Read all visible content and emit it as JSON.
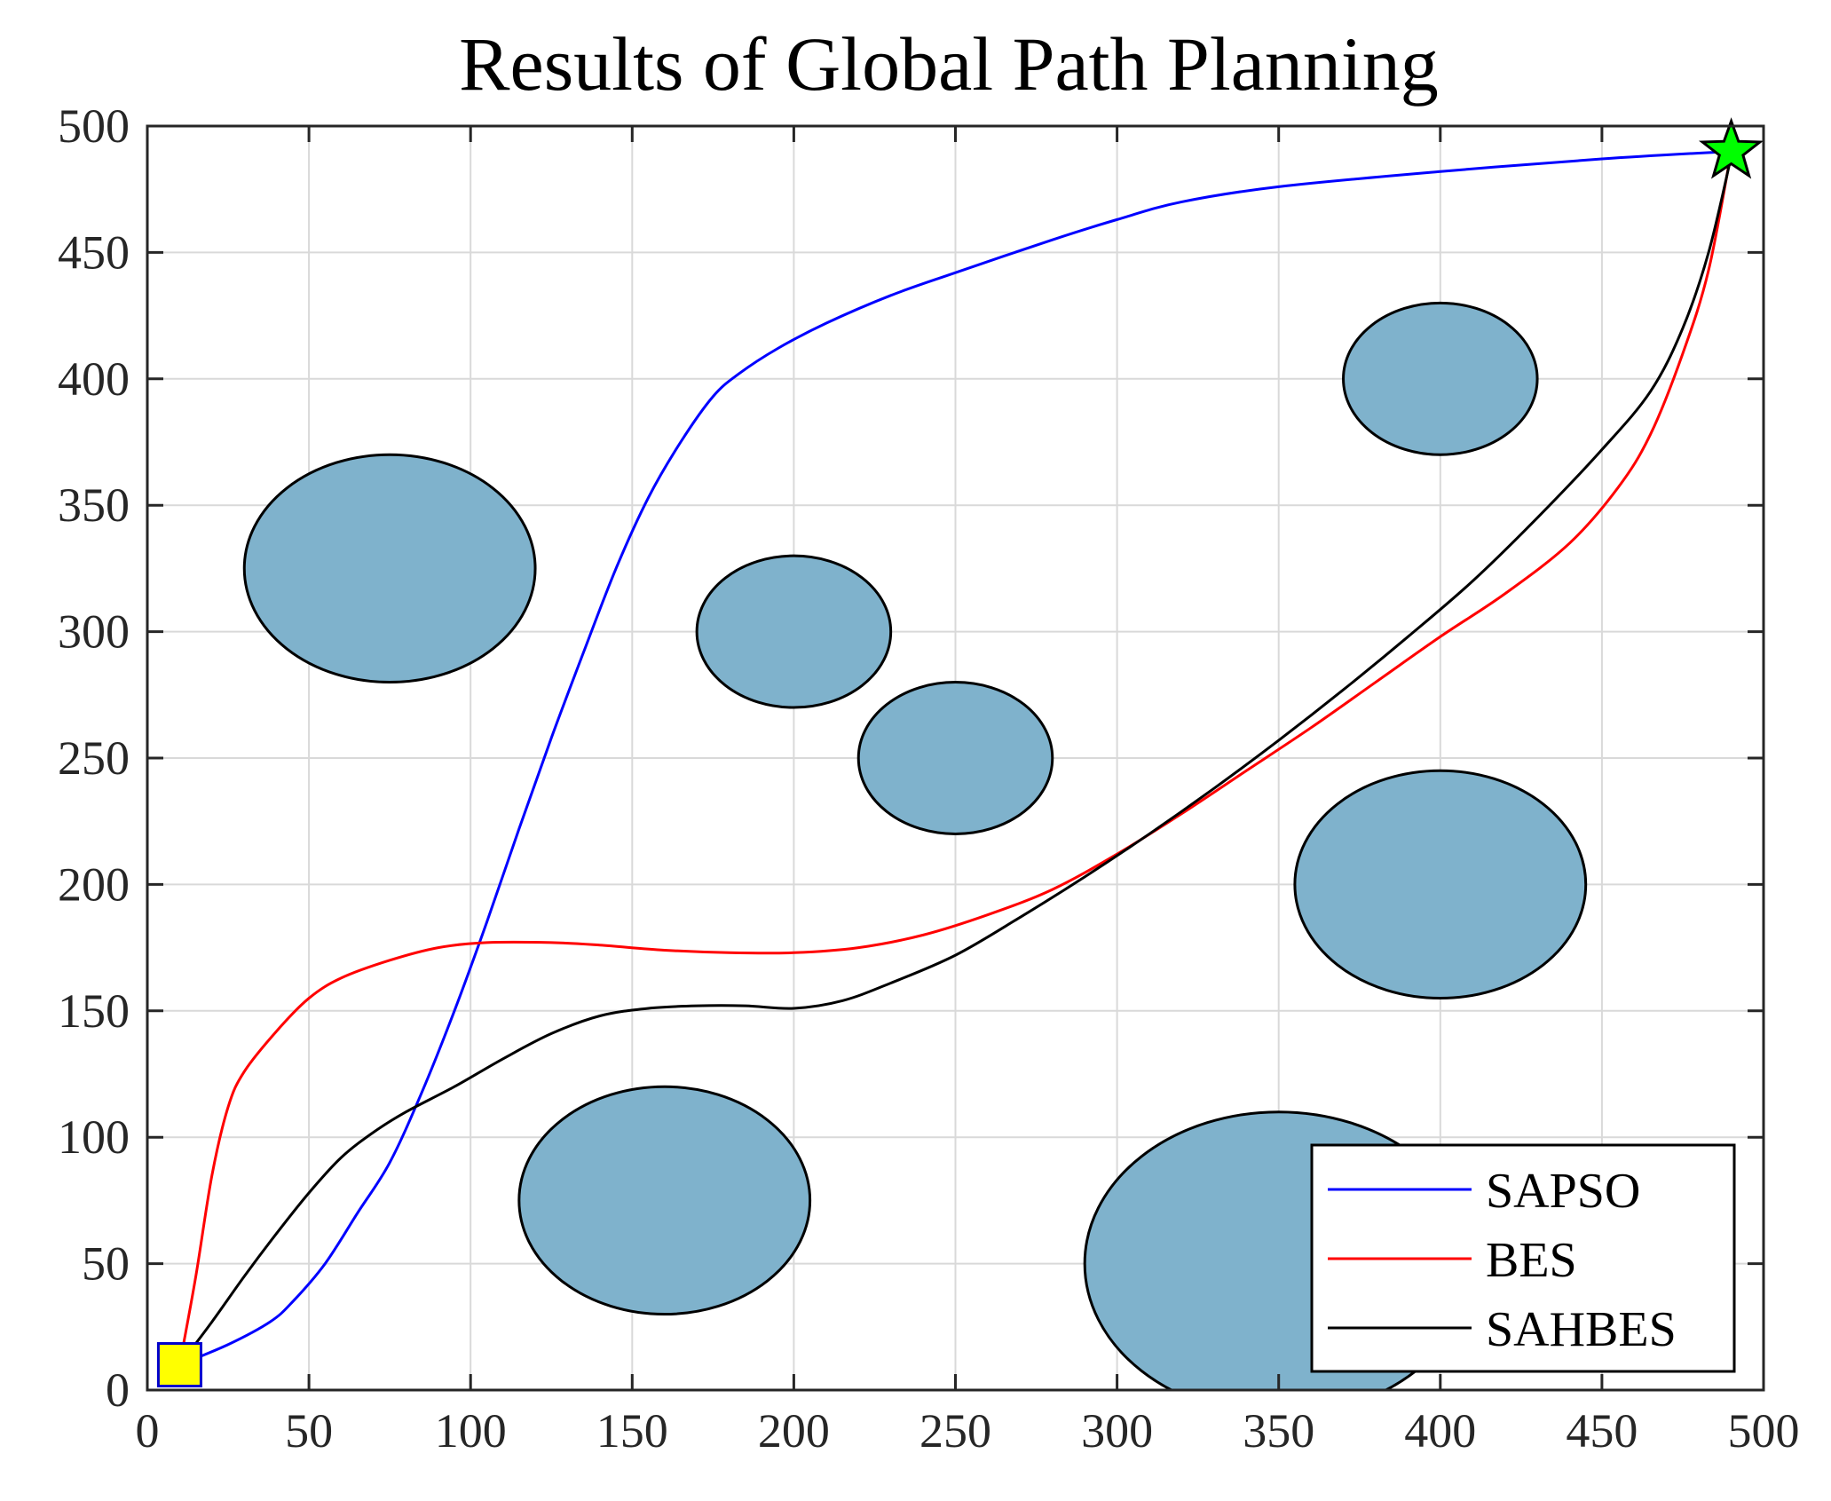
{
  "chart_data": {
    "type": "line",
    "title": "Results of Global Path Planning",
    "xlabel": "",
    "ylabel": "",
    "xlim": [
      0,
      500
    ],
    "ylim": [
      0,
      500
    ],
    "xticks": [
      0,
      50,
      100,
      150,
      200,
      250,
      300,
      350,
      400,
      450,
      500
    ],
    "yticks": [
      0,
      50,
      100,
      150,
      200,
      250,
      300,
      350,
      400,
      450,
      500
    ],
    "grid": true,
    "legend_position": "bottom-right",
    "start": {
      "x": 10,
      "y": 10,
      "marker": "square",
      "color": "#ffff00"
    },
    "goal": {
      "x": 490,
      "y": 490,
      "marker": "star",
      "color": "#00ff00"
    },
    "obstacles": [
      {
        "cx": 75,
        "cy": 325,
        "rx": 45,
        "ry": 45
      },
      {
        "cx": 200,
        "cy": 300,
        "rx": 30,
        "ry": 30
      },
      {
        "cx": 250,
        "cy": 250,
        "rx": 30,
        "ry": 30
      },
      {
        "cx": 400,
        "cy": 400,
        "rx": 30,
        "ry": 30
      },
      {
        "cx": 400,
        "cy": 200,
        "rx": 45,
        "ry": 45
      },
      {
        "cx": 160,
        "cy": 75,
        "rx": 45,
        "ry": 45
      },
      {
        "cx": 350,
        "cy": 50,
        "rx": 60,
        "ry": 60
      }
    ],
    "obstacle_color": "#7fb2cc",
    "series": [
      {
        "name": "SAPSO",
        "color": "#0000ff",
        "points": [
          [
            10,
            10
          ],
          [
            25,
            18
          ],
          [
            38,
            27
          ],
          [
            45,
            35
          ],
          [
            55,
            50
          ],
          [
            65,
            70
          ],
          [
            75,
            90
          ],
          [
            85,
            118
          ],
          [
            95,
            150
          ],
          [
            105,
            185
          ],
          [
            115,
            222
          ],
          [
            125,
            258
          ],
          [
            135,
            292
          ],
          [
            145,
            325
          ],
          [
            155,
            353
          ],
          [
            165,
            375
          ],
          [
            175,
            393
          ],
          [
            183,
            402
          ],
          [
            195,
            412
          ],
          [
            210,
            422
          ],
          [
            230,
            433
          ],
          [
            250,
            442
          ],
          [
            280,
            455
          ],
          [
            300,
            463
          ],
          [
            320,
            470
          ],
          [
            350,
            476
          ],
          [
            400,
            482
          ],
          [
            450,
            487
          ],
          [
            490,
            490
          ]
        ]
      },
      {
        "name": "BES",
        "color": "#ff0000",
        "points": [
          [
            10,
            10
          ],
          [
            15,
            45
          ],
          [
            20,
            85
          ],
          [
            25,
            112
          ],
          [
            30,
            126
          ],
          [
            40,
            142
          ],
          [
            50,
            155
          ],
          [
            60,
            163
          ],
          [
            75,
            170
          ],
          [
            90,
            175
          ],
          [
            105,
            177
          ],
          [
            125,
            177
          ],
          [
            140,
            176
          ],
          [
            160,
            174
          ],
          [
            180,
            173
          ],
          [
            200,
            173
          ],
          [
            220,
            175
          ],
          [
            240,
            180
          ],
          [
            260,
            188
          ],
          [
            280,
            198
          ],
          [
            300,
            212
          ],
          [
            320,
            228
          ],
          [
            340,
            245
          ],
          [
            360,
            262
          ],
          [
            380,
            280
          ],
          [
            400,
            298
          ],
          [
            420,
            315
          ],
          [
            440,
            335
          ],
          [
            455,
            357
          ],
          [
            465,
            378
          ],
          [
            475,
            410
          ],
          [
            483,
            443
          ],
          [
            490,
            490
          ]
        ]
      },
      {
        "name": "SAHBES",
        "color": "#000000",
        "points": [
          [
            10,
            10
          ],
          [
            20,
            27
          ],
          [
            30,
            45
          ],
          [
            40,
            62
          ],
          [
            50,
            78
          ],
          [
            60,
            92
          ],
          [
            70,
            102
          ],
          [
            80,
            110
          ],
          [
            95,
            120
          ],
          [
            110,
            131
          ],
          [
            125,
            141
          ],
          [
            140,
            148
          ],
          [
            155,
            151
          ],
          [
            170,
            152
          ],
          [
            185,
            152
          ],
          [
            200,
            151
          ],
          [
            215,
            154
          ],
          [
            230,
            161
          ],
          [
            250,
            172
          ],
          [
            270,
            187
          ],
          [
            290,
            203
          ],
          [
            310,
            220
          ],
          [
            330,
            238
          ],
          [
            350,
            257
          ],
          [
            370,
            277
          ],
          [
            390,
            298
          ],
          [
            410,
            320
          ],
          [
            430,
            345
          ],
          [
            450,
            372
          ],
          [
            465,
            395
          ],
          [
            475,
            420
          ],
          [
            483,
            450
          ],
          [
            490,
            488
          ]
        ]
      }
    ]
  }
}
